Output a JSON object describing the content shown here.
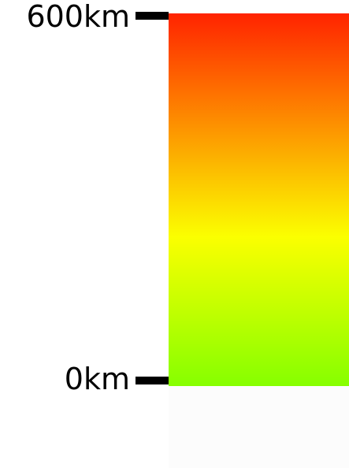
{
  "legend": {
    "max_label": "600km",
    "min_label": "0km",
    "gradient": {
      "top_color": "#ff2300",
      "middle_color": "#fbff00",
      "bottom_color": "#86ff00"
    }
  }
}
